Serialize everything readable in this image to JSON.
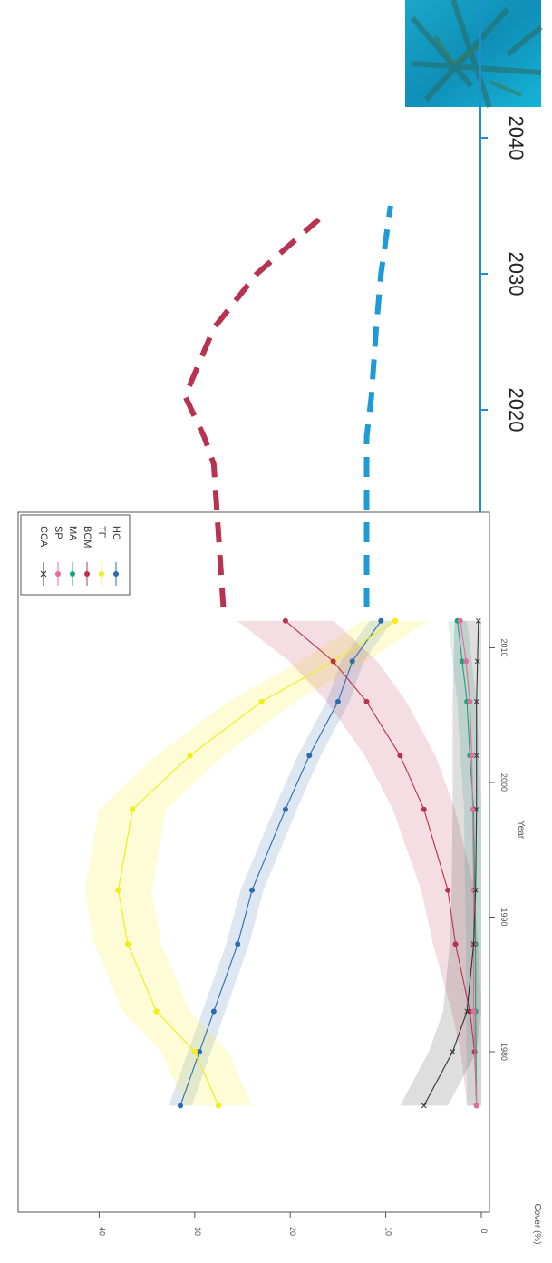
{
  "chart_data": {
    "type": "line",
    "orientation": "rotated-90-clockwise",
    "xlabel": "Year",
    "ylabel": "Cover (%)",
    "xlim_observed": [
      1975,
      2013
    ],
    "xlim_total": [
      1975,
      2045
    ],
    "ylim": [
      0,
      45
    ],
    "x_ticks": [
      1980,
      1990,
      2000,
      2010
    ],
    "x_ticks_projection": [
      2020,
      2030,
      2040
    ],
    "y_ticks": [
      0,
      10,
      20,
      30,
      40
    ],
    "y_tick_labels": [
      "0",
      "10",
      "20",
      "30",
      "40"
    ],
    "grid": false,
    "legend_position": "top-right",
    "colors": {
      "HC": "#2b6cb0",
      "TF": "#f2ee1c",
      "BCM": "#b8334f",
      "MA": "#1aa37a",
      "SP": "#e56aa0",
      "CCA": "#333333",
      "projection_axis": "#1e8fcf"
    },
    "series": [
      {
        "name": "HC",
        "x": [
          1976,
          1980,
          1983,
          1988,
          1992,
          1998,
          2002,
          2006,
          2009,
          2012
        ],
        "values": [
          31.5,
          29.5,
          28,
          25.5,
          24,
          20.5,
          18,
          15,
          13.5,
          10.5
        ]
      },
      {
        "name": "TF",
        "x": [
          1976,
          1980,
          1983,
          1988,
          1992,
          1998,
          2002,
          2006,
          2009,
          2012
        ],
        "values": [
          27.5,
          30,
          34,
          37,
          38,
          36.5,
          30.5,
          23,
          15.5,
          9
        ]
      },
      {
        "name": "BCM",
        "x": [
          1976,
          1980,
          1983,
          1988,
          1992,
          1998,
          2002,
          2006,
          2009,
          2012
        ],
        "values": [
          0.5,
          0.7,
          1.2,
          2.7,
          3.5,
          6,
          8.5,
          12,
          15.5,
          20.5
        ]
      },
      {
        "name": "MA",
        "x": [
          1976,
          1983,
          1988,
          1992,
          1998,
          2002,
          2006,
          2009,
          2012
        ],
        "values": [
          0.5,
          0.6,
          0.6,
          0.7,
          0.8,
          1.2,
          1.5,
          2.0,
          2.5
        ]
      },
      {
        "name": "SP",
        "x": [
          1976,
          1983,
          1988,
          1992,
          1998,
          2002,
          2006,
          2009,
          2012
        ],
        "values": [
          0.5,
          0.8,
          0.8,
          0.8,
          0.9,
          1.0,
          1.2,
          1.6,
          2.2
        ]
      },
      {
        "name": "CCA",
        "x": [
          1976,
          1980,
          1983,
          1988,
          1992,
          1998,
          2002,
          2006,
          2009,
          2012
        ],
        "values": [
          6,
          3,
          1.5,
          0.8,
          0.6,
          0.5,
          0.5,
          0.5,
          0.4,
          0.3
        ]
      }
    ],
    "projections": [
      {
        "name": "BCM",
        "x": [
          2013,
          2016,
          2018,
          2021,
          2026,
          2030,
          2034
        ],
        "values": [
          27,
          28,
          29,
          31,
          28,
          23.5,
          17
        ]
      },
      {
        "name": "HC",
        "x": [
          2013,
          2016,
          2018,
          2021,
          2026,
          2030,
          2035
        ],
        "values": [
          12,
          12,
          12,
          11.5,
          11,
          10.5,
          9.5
        ]
      }
    ]
  }
}
